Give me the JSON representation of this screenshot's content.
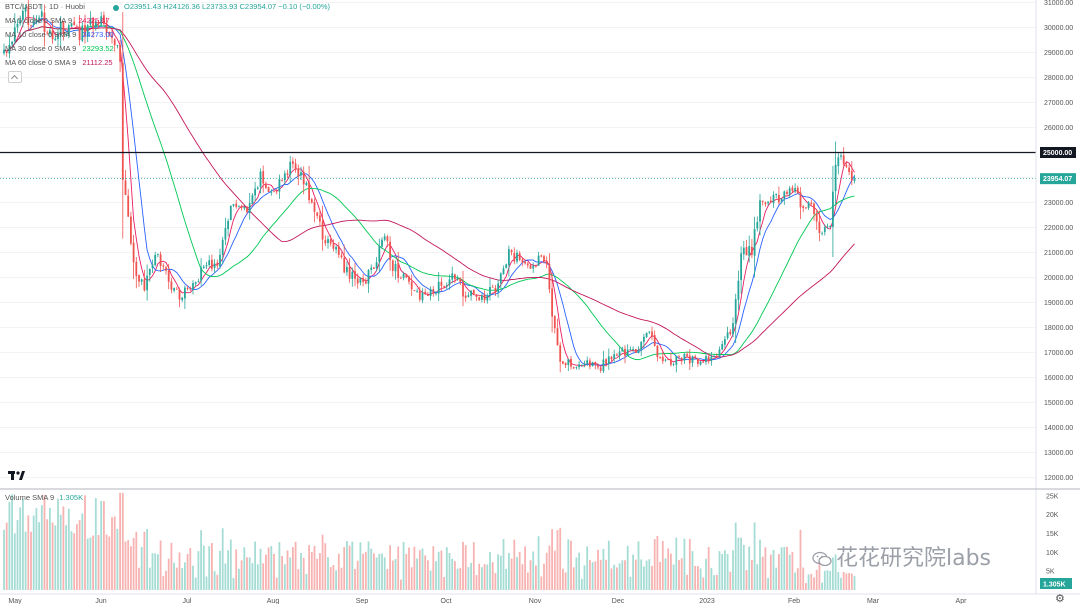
{
  "header": {
    "symbol_line": "BTC/USDT · 1D · Huobi",
    "ohlc": "O23951.43 H24126.36 L23733.93 C23954.07 −0.10 (−0.00%)"
  },
  "legend": [
    {
      "label": "MA 5 close 0 SMA 9",
      "value": "24225.67",
      "color": "#e91e63"
    },
    {
      "label": "MA 10 close 0 SMA 9",
      "value": "24273.00",
      "color": "#2962ff"
    },
    {
      "label": "MA 30 close 0 SMA 9",
      "value": "23293.52",
      "color": "#00c853"
    },
    {
      "label": "MA 60 close 0 SMA 9",
      "value": "21112.25",
      "color": "#c2185b"
    }
  ],
  "volume_legend": {
    "label": "Volume SMA 9",
    "value": "1.305K",
    "color": "#26a69a"
  },
  "watermark": "花花研究院labs",
  "chart_data": {
    "type": "candlestick",
    "title": "BTC/USDT · 1D · Huobi",
    "price_axis": {
      "min": 11500,
      "max": 31200,
      "ticks": [
        "31000.00",
        "30000.00",
        "29000.00",
        "28000.00",
        "27000.00",
        "26000.00",
        "25000.00",
        "24000.00",
        "23000.00",
        "22000.00",
        "21000.00",
        "20000.00",
        "19000.00",
        "18000.00",
        "17000.00",
        "16000.00",
        "15000.00",
        "14000.00",
        "13000.00",
        "12000.00"
      ]
    },
    "volume_axis": {
      "min": 0,
      "max": 26000,
      "ticks": [
        "25K",
        "20K",
        "15K",
        "10K",
        "5K"
      ]
    },
    "time_axis": [
      "May",
      "Jun",
      "Jul",
      "Aug",
      "Sep",
      "Oct",
      "Nov",
      "Dec",
      "2023",
      "Feb",
      "Mar",
      "Apr"
    ],
    "horizontal_line": {
      "value": 25000,
      "label": "25000.00"
    },
    "last_price": {
      "value": 23954.07,
      "label": "23954.07"
    },
    "last_volume_label": "1.305K",
    "colors": {
      "up": "#26a69a",
      "down": "#ef5350",
      "vol_up": "#a5dcd4",
      "vol_down": "#f7b3b1"
    },
    "close_anchors": [
      [
        0,
        29000
      ],
      [
        8,
        30500
      ],
      [
        14,
        30300
      ],
      [
        16,
        29500
      ],
      [
        22,
        30000
      ],
      [
        28,
        29800
      ],
      [
        35,
        30400
      ],
      [
        40,
        29900
      ],
      [
        43,
        28800
      ],
      [
        44,
        24000
      ],
      [
        46,
        22500
      ],
      [
        48,
        20500
      ],
      [
        52,
        19500
      ],
      [
        56,
        21000
      ],
      [
        60,
        20100
      ],
      [
        65,
        19200
      ],
      [
        70,
        19800
      ],
      [
        75,
        20500
      ],
      [
        80,
        20700
      ],
      [
        84,
        23000
      ],
      [
        90,
        22500
      ],
      [
        95,
        24000
      ],
      [
        100,
        23300
      ],
      [
        105,
        24300
      ],
      [
        107,
        24800
      ],
      [
        110,
        24000
      ],
      [
        114,
        23100
      ],
      [
        118,
        21600
      ],
      [
        122,
        21300
      ],
      [
        127,
        20200
      ],
      [
        133,
        19800
      ],
      [
        137,
        20400
      ],
      [
        141,
        21800
      ],
      [
        144,
        20500
      ],
      [
        149,
        19800
      ],
      [
        155,
        19200
      ],
      [
        160,
        19500
      ],
      [
        166,
        20100
      ],
      [
        171,
        19300
      ],
      [
        176,
        19200
      ],
      [
        182,
        19500
      ],
      [
        187,
        20900
      ],
      [
        192,
        20700
      ],
      [
        196,
        20300
      ],
      [
        199,
        21000
      ],
      [
        201,
        20700
      ],
      [
        203,
        18600
      ],
      [
        206,
        16800
      ],
      [
        210,
        16500
      ],
      [
        215,
        16600
      ],
      [
        220,
        16300
      ],
      [
        225,
        16900
      ],
      [
        230,
        17000
      ],
      [
        235,
        17200
      ],
      [
        239,
        17800
      ],
      [
        242,
        16900
      ],
      [
        247,
        16700
      ],
      [
        252,
        16800
      ],
      [
        257,
        16600
      ],
      [
        262,
        16700
      ],
      [
        266,
        17200
      ],
      [
        270,
        18000
      ],
      [
        273,
        20900
      ],
      [
        277,
        21100
      ],
      [
        280,
        22900
      ],
      [
        284,
        23100
      ],
      [
        288,
        23300
      ],
      [
        292,
        23500
      ],
      [
        295,
        23000
      ],
      [
        299,
        22900
      ],
      [
        303,
        21700
      ],
      [
        306,
        22200
      ],
      [
        308,
        24500
      ],
      [
        310,
        24800
      ],
      [
        313,
        24100
      ],
      [
        315,
        23954
      ]
    ],
    "series": [
      {
        "name": "MA 5 close 0 SMA 9",
        "period": 5
      },
      {
        "name": "MA 10 close 0 SMA 9",
        "period": 10
      },
      {
        "name": "MA 30 close 0 SMA 9",
        "period": 30
      },
      {
        "name": "MA 60 close 0 SMA 9",
        "period": 60
      }
    ]
  }
}
